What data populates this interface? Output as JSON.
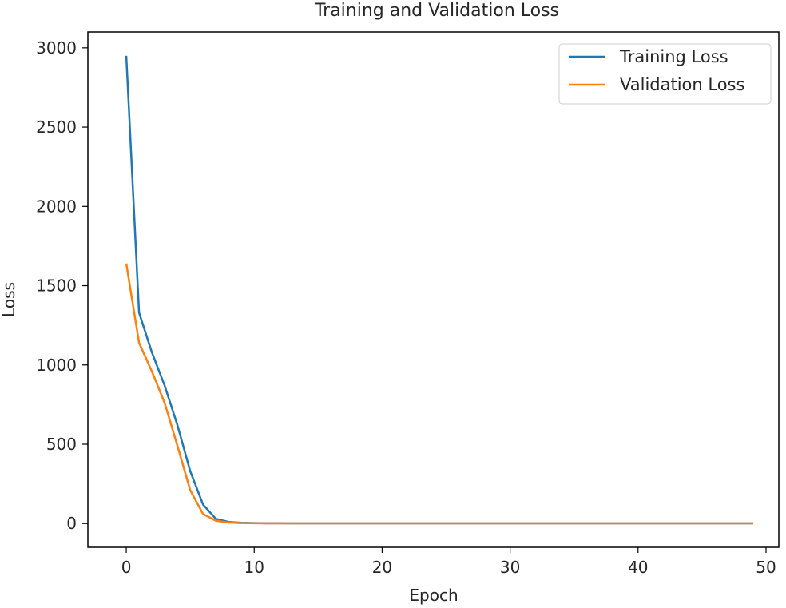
{
  "chart_data": {
    "type": "line",
    "title": "Training and Validation Loss",
    "xlabel": "Epoch",
    "ylabel": "Loss",
    "xlim": [
      -3,
      51
    ],
    "ylim": [
      -150,
      3100
    ],
    "xticks": [
      0,
      10,
      20,
      30,
      40,
      50
    ],
    "yticks": [
      0,
      500,
      1000,
      1500,
      2000,
      2500,
      3000
    ],
    "grid": false,
    "legend_position": "top-right",
    "x": [
      0,
      1,
      2,
      3,
      4,
      5,
      6,
      7,
      8,
      9,
      10,
      11,
      12,
      13,
      14,
      15,
      16,
      17,
      18,
      19,
      20,
      21,
      22,
      23,
      24,
      25,
      26,
      27,
      28,
      29,
      30,
      31,
      32,
      33,
      34,
      35,
      36,
      37,
      38,
      39,
      40,
      41,
      42,
      43,
      44,
      45,
      46,
      47,
      48,
      49
    ],
    "series": [
      {
        "name": "Training Loss",
        "color": "#1f77b4",
        "values": [
          2950,
          1330,
          1080,
          870,
          620,
          330,
          120,
          30,
          10,
          5,
          3,
          2,
          2,
          1,
          1,
          1,
          1,
          1,
          1,
          1,
          1,
          1,
          1,
          1,
          1,
          1,
          1,
          1,
          1,
          1,
          1,
          1,
          1,
          1,
          1,
          1,
          1,
          1,
          1,
          1,
          1,
          1,
          1,
          1,
          1,
          1,
          1,
          1,
          1,
          1
        ]
      },
      {
        "name": "Validation Loss",
        "color": "#ff7f0e",
        "values": [
          1640,
          1140,
          960,
          760,
          490,
          210,
          60,
          18,
          6,
          3,
          2,
          1,
          1,
          1,
          1,
          1,
          1,
          1,
          1,
          1,
          1,
          1,
          1,
          1,
          1,
          1,
          1,
          1,
          1,
          1,
          1,
          1,
          1,
          1,
          1,
          1,
          1,
          1,
          1,
          1,
          1,
          1,
          1,
          1,
          1,
          1,
          1,
          1,
          1,
          1
        ]
      }
    ]
  }
}
